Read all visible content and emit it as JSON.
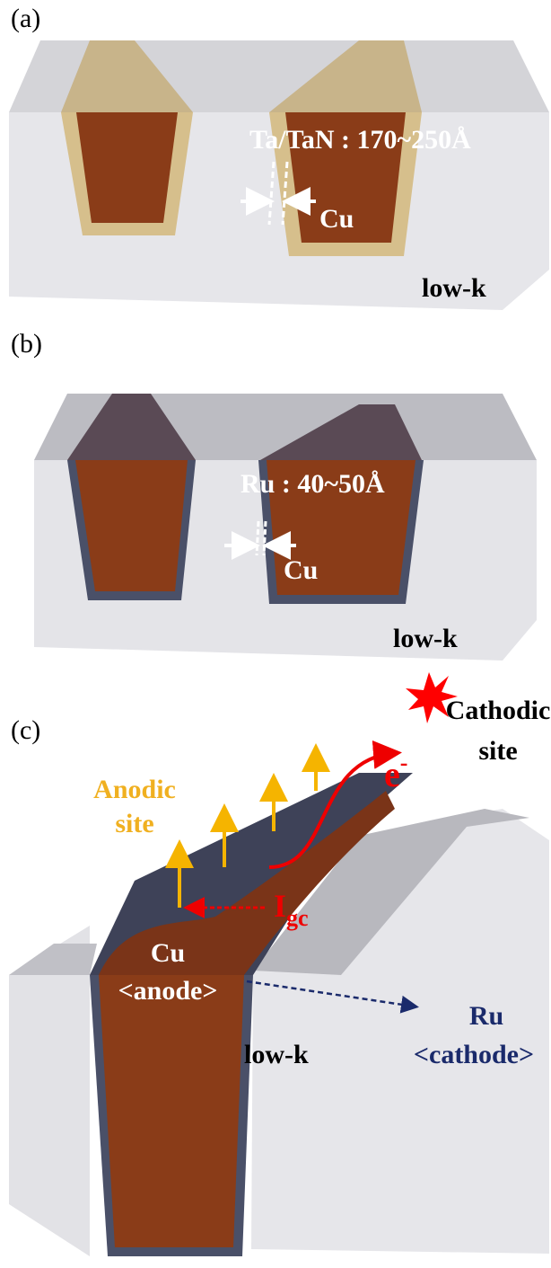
{
  "panels": [
    {
      "label": "(a)",
      "liner": "Ta/TaN : 170~250Å",
      "metal": "Cu",
      "dielectric": "low-k"
    },
    {
      "label": "(b)",
      "liner": "Ru : 40~50Å",
      "metal": "Cu",
      "dielectric": "low-k"
    },
    {
      "label": "(c)",
      "cathodic_site": [
        "Cathodic",
        "site"
      ],
      "anodic_site": [
        "Anodic",
        "site"
      ],
      "electron": {
        "symbol": "e",
        "charge": "-"
      },
      "current": {
        "symbol": "I",
        "subscript": "gc"
      },
      "anode": [
        "Cu",
        "<anode>"
      ],
      "cathode": [
        "Ru",
        "<cathode>"
      ],
      "dielectric": "low-k"
    }
  ]
}
